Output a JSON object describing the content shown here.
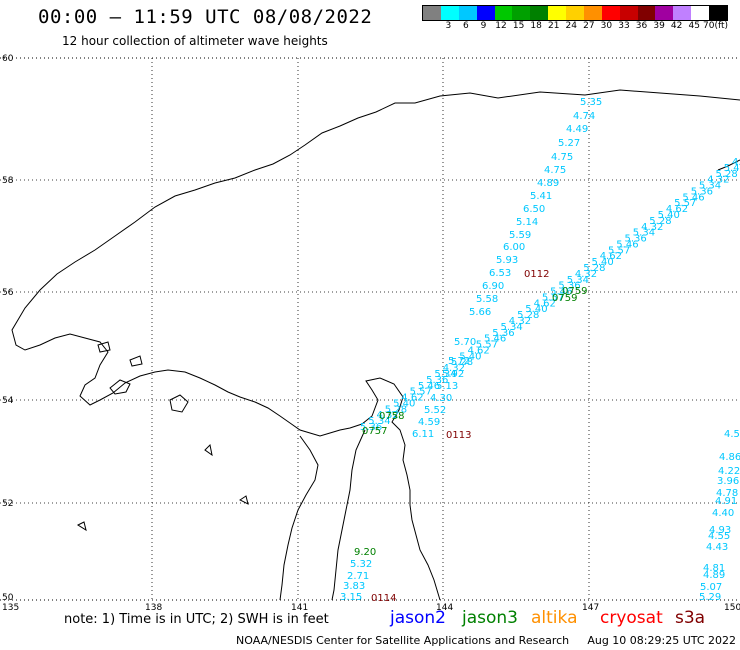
{
  "header": {
    "title": "00:00 – 11:59 UTC 08/08/2022",
    "subtitle": "12 hour collection of altimeter wave heights"
  },
  "scale": {
    "unit": "(ft)",
    "labels": [
      "3",
      "6",
      "9",
      "12",
      "15",
      "18",
      "21",
      "24",
      "27",
      "30",
      "33",
      "36",
      "39",
      "42",
      "45",
      "70"
    ],
    "colors": [
      "#808080",
      "#00ffff",
      "#00c8ff",
      "#0000ff",
      "#00c800",
      "#00a000",
      "#008000",
      "#ffff00",
      "#ffd000",
      "#ff9000",
      "#ff0000",
      "#c80000",
      "#800000",
      "#a000a0",
      "#c080ff",
      "#ffffff",
      "#000000"
    ]
  },
  "axes": {
    "x_ticks": [
      "135",
      "138",
      "141",
      "144",
      "147",
      "150"
    ],
    "y_ticks": [
      "60",
      "58",
      "56",
      "54",
      "52",
      "50"
    ]
  },
  "track_labels": {
    "cyan_north": [
      "5.35",
      "4.74",
      "4.49",
      "5.27",
      "4.75",
      "4.75",
      "4.89",
      "5.41",
      "6.50",
      "5.14",
      "5.59",
      "6.00",
      "5.93",
      "6.53",
      "6.90",
      "5.58",
      "5.66",
      "5.70",
      "5.72",
      "5.92",
      "5.13",
      "4.30",
      "5.52",
      "4.59",
      "6.11"
    ],
    "cyan_south": [
      "9.20",
      "5.32",
      "2.71",
      "3.83",
      "3.15"
    ],
    "cyan_east": [
      "4.86",
      "4.22",
      "3.96",
      "4.78",
      "4.91",
      "4.40",
      "4.93",
      "4.55",
      "4.43",
      "4.81",
      "4.89",
      "5.07",
      "5.29",
      "4.5"
    ],
    "diag": [
      "5.36",
      "5.34",
      "4.32",
      "5.28",
      "5.40",
      "4.62",
      "5.57",
      "5.46"
    ]
  },
  "time_labels": [
    {
      "text": "0112",
      "color": "#800000"
    },
    {
      "text": "0759",
      "color": "#008000"
    },
    {
      "text": "0759",
      "color": "#008000"
    },
    {
      "text": "0758",
      "color": "#008000"
    },
    {
      "text": "0757",
      "color": "#008000"
    },
    {
      "text": "0113",
      "color": "#800000"
    },
    {
      "text": "0114",
      "color": "#800000"
    }
  ],
  "note": "note: 1) Time is in UTC; 2) SWH is in feet",
  "satellites": [
    {
      "name": "jason2",
      "color": "#0000ff"
    },
    {
      "name": "jason3",
      "color": "#008000"
    },
    {
      "name": "altika",
      "color": "#ff9000"
    },
    {
      "name": "cryosat",
      "color": "#ff0000"
    },
    {
      "name": "s3a",
      "color": "#800000"
    }
  ],
  "footer": {
    "credit": "NOAA/NESDIS Center for Satellite Applications and Research",
    "timestamp": "Aug 10 08:29:25 UTC 2022"
  }
}
